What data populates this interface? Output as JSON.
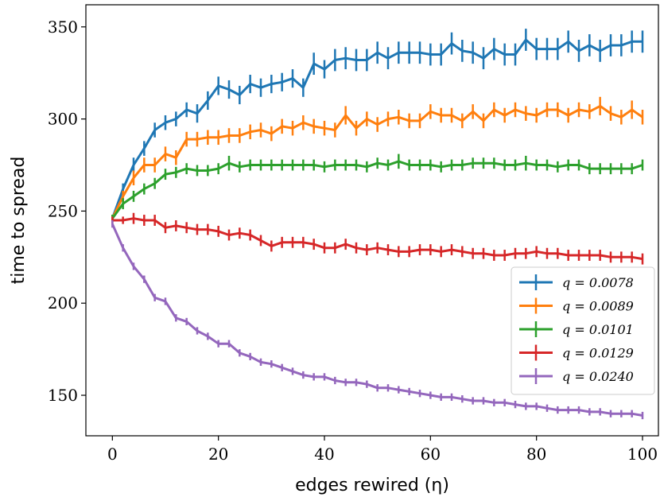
{
  "chart_data": {
    "type": "line",
    "xlabel": "edges rewired (η)",
    "ylabel": "time to spread",
    "xlim": [
      -5,
      103
    ],
    "ylim": [
      128,
      362
    ],
    "xticks": [
      0,
      20,
      40,
      60,
      80,
      100
    ],
    "yticks": [
      150,
      200,
      250,
      300,
      350
    ],
    "legend_position": "lower-right",
    "x": [
      0,
      2,
      4,
      6,
      8,
      10,
      12,
      14,
      16,
      18,
      20,
      22,
      24,
      26,
      28,
      30,
      32,
      34,
      36,
      38,
      40,
      42,
      44,
      46,
      48,
      50,
      52,
      54,
      56,
      58,
      60,
      62,
      64,
      66,
      68,
      70,
      72,
      74,
      76,
      78,
      80,
      82,
      84,
      86,
      88,
      90,
      92,
      94,
      96,
      98,
      100
    ],
    "series": [
      {
        "name": "q = 0.0078",
        "color": "#1f77b4",
        "values": [
          246,
          262,
          275,
          284,
          294,
          298,
          300,
          305,
          303,
          310,
          318,
          316,
          313,
          319,
          317,
          319,
          320,
          322,
          317,
          330,
          327,
          332,
          333,
          332,
          332,
          336,
          333,
          336,
          336,
          336,
          335,
          335,
          341,
          337,
          336,
          333,
          338,
          335,
          335,
          343,
          338,
          338,
          338,
          342,
          337,
          340,
          337,
          340,
          340,
          342,
          342
        ],
        "errors": [
          2,
          3,
          4,
          4,
          4,
          4,
          4,
          4,
          5,
          5,
          5,
          5,
          5,
          5,
          5,
          5,
          5,
          5,
          5,
          6,
          5,
          6,
          6,
          6,
          6,
          6,
          6,
          6,
          6,
          6,
          6,
          6,
          6,
          6,
          6,
          6,
          6,
          6,
          6,
          6,
          6,
          6,
          6,
          6,
          6,
          6,
          6,
          6,
          6,
          6,
          6
        ]
      },
      {
        "name": "q = 0.0089",
        "color": "#ff7f0e",
        "values": [
          246,
          258,
          268,
          275,
          275,
          281,
          279,
          289,
          289,
          290,
          290,
          291,
          291,
          293,
          294,
          292,
          296,
          295,
          298,
          296,
          295,
          294,
          302,
          295,
          300,
          297,
          300,
          301,
          299,
          299,
          304,
          302,
          302,
          299,
          304,
          299,
          305,
          302,
          305,
          303,
          302,
          305,
          305,
          302,
          305,
          304,
          307,
          303,
          301,
          305,
          301
        ],
        "errors": [
          2,
          3,
          4,
          4,
          4,
          4,
          4,
          4,
          4,
          4,
          4,
          4,
          4,
          4,
          4,
          4,
          4,
          4,
          4,
          4,
          4,
          4,
          5,
          4,
          4,
          4,
          4,
          4,
          4,
          4,
          4,
          4,
          4,
          4,
          4,
          4,
          4,
          4,
          4,
          4,
          4,
          4,
          4,
          4,
          4,
          4,
          5,
          4,
          4,
          5,
          4
        ]
      },
      {
        "name": "q = 0.0101",
        "color": "#2ca02c",
        "values": [
          246,
          254,
          258,
          262,
          265,
          270,
          271,
          273,
          272,
          272,
          273,
          276,
          274,
          275,
          275,
          275,
          275,
          275,
          275,
          275,
          274,
          275,
          275,
          275,
          274,
          276,
          275,
          277,
          275,
          275,
          275,
          274,
          275,
          275,
          276,
          276,
          276,
          275,
          275,
          276,
          275,
          275,
          274,
          275,
          275,
          273,
          273,
          273,
          273,
          273,
          275
        ],
        "errors": [
          2,
          3,
          3,
          3,
          3,
          3,
          3,
          3,
          3,
          3,
          3,
          4,
          3,
          3,
          3,
          3,
          3,
          3,
          3,
          3,
          3,
          3,
          3,
          3,
          3,
          3,
          3,
          4,
          3,
          3,
          3,
          3,
          3,
          3,
          3,
          3,
          3,
          3,
          3,
          4,
          3,
          3,
          3,
          3,
          3,
          3,
          3,
          3,
          3,
          3,
          3
        ]
      },
      {
        "name": "q = 0.0129",
        "color": "#d62728",
        "values": [
          245,
          245,
          246,
          245,
          245,
          241,
          242,
          241,
          240,
          240,
          239,
          237,
          238,
          237,
          234,
          231,
          233,
          233,
          233,
          232,
          230,
          230,
          232,
          230,
          229,
          230,
          229,
          228,
          228,
          229,
          229,
          228,
          229,
          228,
          227,
          227,
          226,
          226,
          227,
          227,
          228,
          227,
          227,
          226,
          226,
          226,
          226,
          225,
          225,
          225,
          224
        ],
        "errors": [
          2,
          2,
          3,
          3,
          3,
          3,
          3,
          3,
          3,
          3,
          3,
          3,
          3,
          3,
          3,
          3,
          3,
          3,
          3,
          3,
          3,
          3,
          3,
          3,
          3,
          3,
          3,
          3,
          3,
          3,
          3,
          3,
          3,
          3,
          3,
          3,
          3,
          3,
          3,
          3,
          3,
          3,
          3,
          3,
          3,
          3,
          3,
          3,
          3,
          3,
          3
        ]
      },
      {
        "name": "q = 0.0240",
        "color": "#9467bd",
        "values": [
          243,
          230,
          220,
          213,
          203,
          201,
          192,
          190,
          185,
          182,
          178,
          178,
          173,
          171,
          168,
          167,
          165,
          163,
          161,
          160,
          160,
          158,
          157,
          157,
          156,
          154,
          154,
          153,
          152,
          151,
          150,
          149,
          149,
          148,
          147,
          147,
          146,
          146,
          145,
          144,
          144,
          143,
          142,
          142,
          142,
          141,
          141,
          140,
          140,
          140,
          139
        ],
        "errors": [
          2,
          2,
          2,
          2,
          2,
          2,
          2,
          2,
          2,
          2,
          2,
          2,
          2,
          2,
          2,
          2,
          2,
          2,
          2,
          2,
          2,
          2,
          2,
          2,
          2,
          2,
          2,
          2,
          2,
          2,
          2,
          2,
          2,
          2,
          2,
          2,
          2,
          2,
          2,
          2,
          2,
          2,
          2,
          2,
          2,
          2,
          2,
          2,
          2,
          2,
          2
        ]
      }
    ]
  }
}
